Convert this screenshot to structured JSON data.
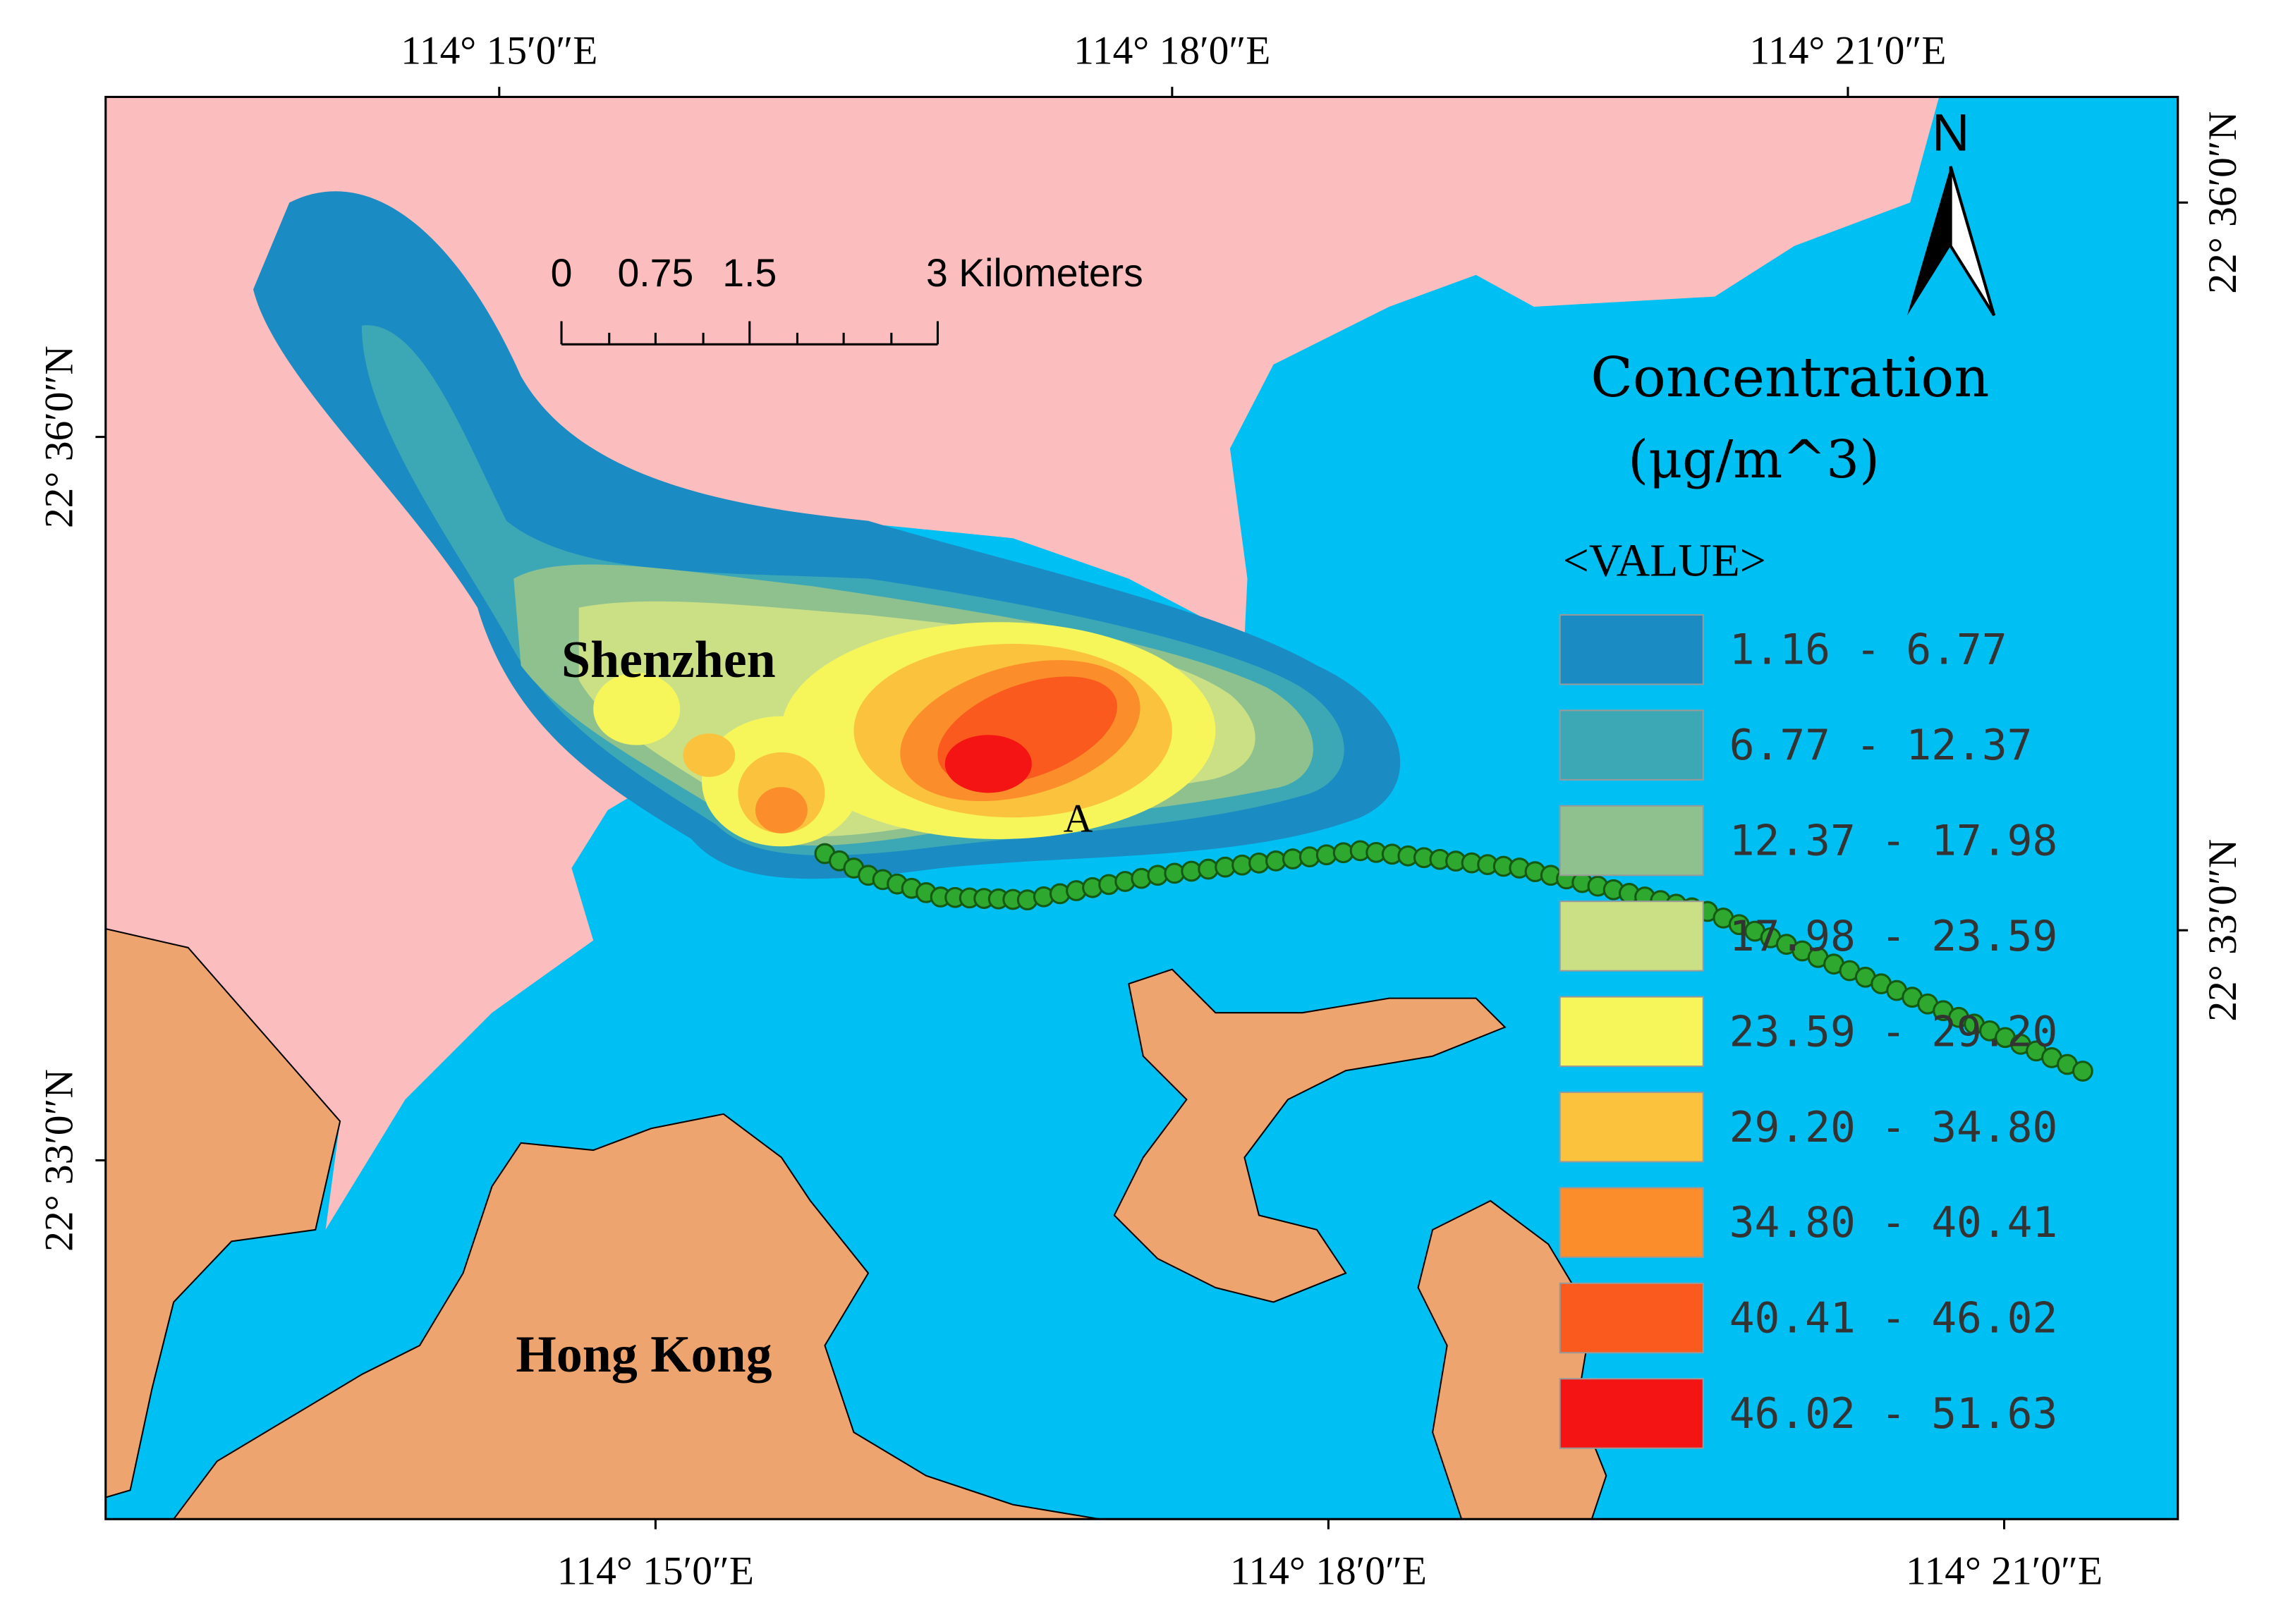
{
  "map": {
    "top_labels": [
      "114° 15′0″E",
      "114° 18′0″E",
      "114° 21′0″E"
    ],
    "bottom_labels": [
      "114° 15′0″E",
      "114° 18′0″E",
      "114° 21′0″E"
    ],
    "left_labels": [
      "22° 36′0″N",
      "22° 33′0″N"
    ],
    "right_labels": [
      "22° 36′0″N",
      "22° 33′0″N"
    ],
    "places": [
      "Shenzhen",
      "Hong Kong"
    ],
    "point_label": "A",
    "north": "N",
    "scale_bar": [
      "0",
      "0.75",
      "1.5",
      "3 Kilometers"
    ],
    "legend": {
      "title": "Concentration",
      "unit": "(μg/m^3)",
      "field": "<VALUE>",
      "classes": [
        {
          "label": "1.16 - 6.77",
          "color": "#1a8bc3"
        },
        {
          "label": "6.77 - 12.37",
          "color": "#3ca8b6"
        },
        {
          "label": "12.37 - 17.98",
          "color": "#8fc18f"
        },
        {
          "label": "17.98 - 23.59",
          "color": "#cbe085"
        },
        {
          "label": "23.59 - 29.20",
          "color": "#f6f65a"
        },
        {
          "label": "29.20 - 34.80",
          "color": "#fbc23e"
        },
        {
          "label": "34.80 - 40.41",
          "color": "#fb8d2b"
        },
        {
          "label": "40.41 - 46.02",
          "color": "#fa5a1e"
        },
        {
          "label": "46.02 - 51.63",
          "color": "#f41414"
        }
      ]
    }
  }
}
